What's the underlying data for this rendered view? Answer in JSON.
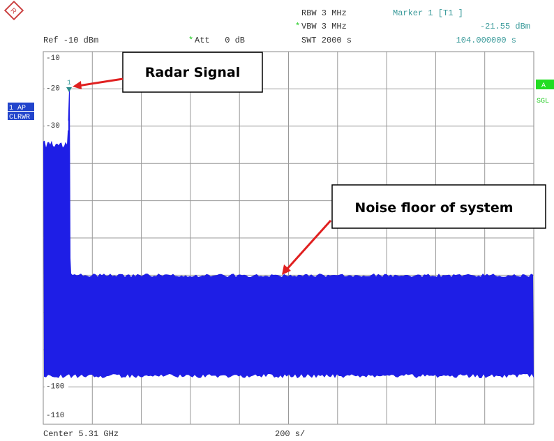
{
  "header": {
    "rbw": "RBW 3 MHz",
    "vbw_flag": "*",
    "vbw": "VBW 3 MHz",
    "swt": "SWT 2000 s",
    "marker": "Marker 1 [T1 ]",
    "marker_level": "-21.55 dBm",
    "marker_time": "104.000000 s",
    "ref": "Ref -10 dBm",
    "att_flag": "*",
    "att": "Att   0 dB"
  },
  "side": {
    "trace_mode": "1 AP",
    "detector": "CLRWR",
    "a": "A",
    "sgl": "SGL"
  },
  "y_labels": [
    "-10",
    "-20",
    "-30",
    "-100",
    "-110"
  ],
  "marker_number": "1",
  "footer": {
    "center": "Center 5.31 GHz",
    "span": "200 s/"
  },
  "annotations": [
    "Radar Signal",
    "Noise floor of system"
  ]
}
